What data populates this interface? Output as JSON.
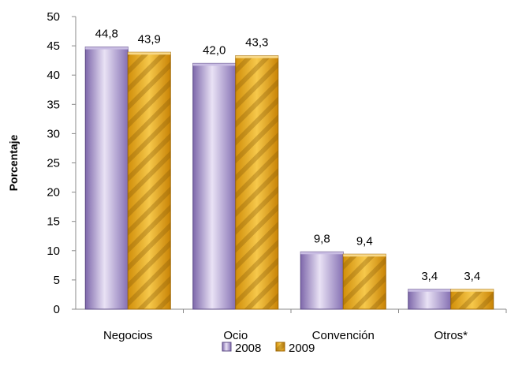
{
  "chart_data": {
    "type": "bar",
    "categories": [
      "Negocios",
      "Ocio",
      "Convención",
      "Otros*"
    ],
    "series": [
      {
        "name": "2008",
        "values": [
          44.8,
          42.0,
          9.8,
          3.4
        ],
        "labels": [
          "44,8",
          "42,0",
          "9,8",
          "3,4"
        ],
        "color": "#9a85c2"
      },
      {
        "name": "2009",
        "values": [
          43.9,
          43.3,
          9.4,
          3.4
        ],
        "labels": [
          "43,9",
          "43,3",
          "9,4",
          "3,4"
        ],
        "color": "#e0a21a"
      }
    ],
    "ylabel": "Porcentaje",
    "xlabel": "",
    "ylim": [
      0,
      50
    ],
    "yticks": [
      0,
      5,
      10,
      15,
      20,
      25,
      30,
      35,
      40,
      45,
      50
    ],
    "grid": false,
    "legend_position": "bottom"
  }
}
